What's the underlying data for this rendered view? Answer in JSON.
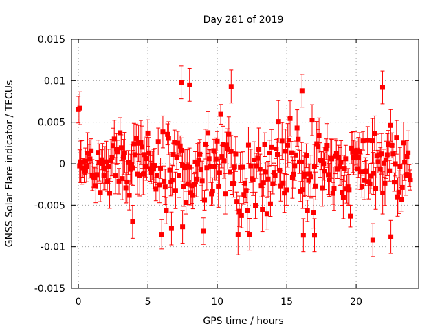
{
  "chart_data": {
    "type": "scatter",
    "title": "Day 281 of 2019",
    "xlabel": "GPS time / hours",
    "ylabel": "GNSS Solar Flare indicator / TECUs",
    "xlim": [
      -0.5,
      24.5
    ],
    "ylim": [
      -0.015,
      0.015
    ],
    "x_ticks": [
      0,
      5,
      10,
      15,
      20
    ],
    "x_tick_labels": [
      "0",
      "5",
      "10",
      "15",
      "20"
    ],
    "y_ticks": [
      -0.015,
      -0.01,
      -0.005,
      0,
      0.005,
      0.01,
      0.015
    ],
    "y_tick_labels": [
      "-0.015",
      "-0.01",
      "-0.005",
      "0",
      "0.005",
      "0.01",
      "0.015"
    ],
    "grid": true,
    "series": [
      {
        "name": "solar flare indicator",
        "color": "#ff0000",
        "marker": "square",
        "error_bars": true,
        "x_range": [
          0,
          23.97
        ],
        "interval_hours": 0.0833,
        "center": 0,
        "typical_spread": 0.0025,
        "typical_error": 0.0018,
        "notable_points": [
          {
            "x": 7.4,
            "y": 0.0098
          },
          {
            "x": 8.0,
            "y": 0.0095
          },
          {
            "x": 11.0,
            "y": 0.0093
          },
          {
            "x": 16.1,
            "y": 0.0088
          },
          {
            "x": 21.9,
            "y": 0.0092
          },
          {
            "x": 21.2,
            "y": -0.0092
          },
          {
            "x": 6.7,
            "y": -0.0078
          },
          {
            "x": 7.5,
            "y": -0.0076
          },
          {
            "x": 16.2,
            "y": -0.0086
          },
          {
            "x": 17.0,
            "y": -0.0086
          },
          {
            "x": 22.5,
            "y": -0.0088
          },
          {
            "x": 0.1,
            "y": 0.0067
          },
          {
            "x": 3.9,
            "y": -0.007
          }
        ]
      }
    ]
  }
}
